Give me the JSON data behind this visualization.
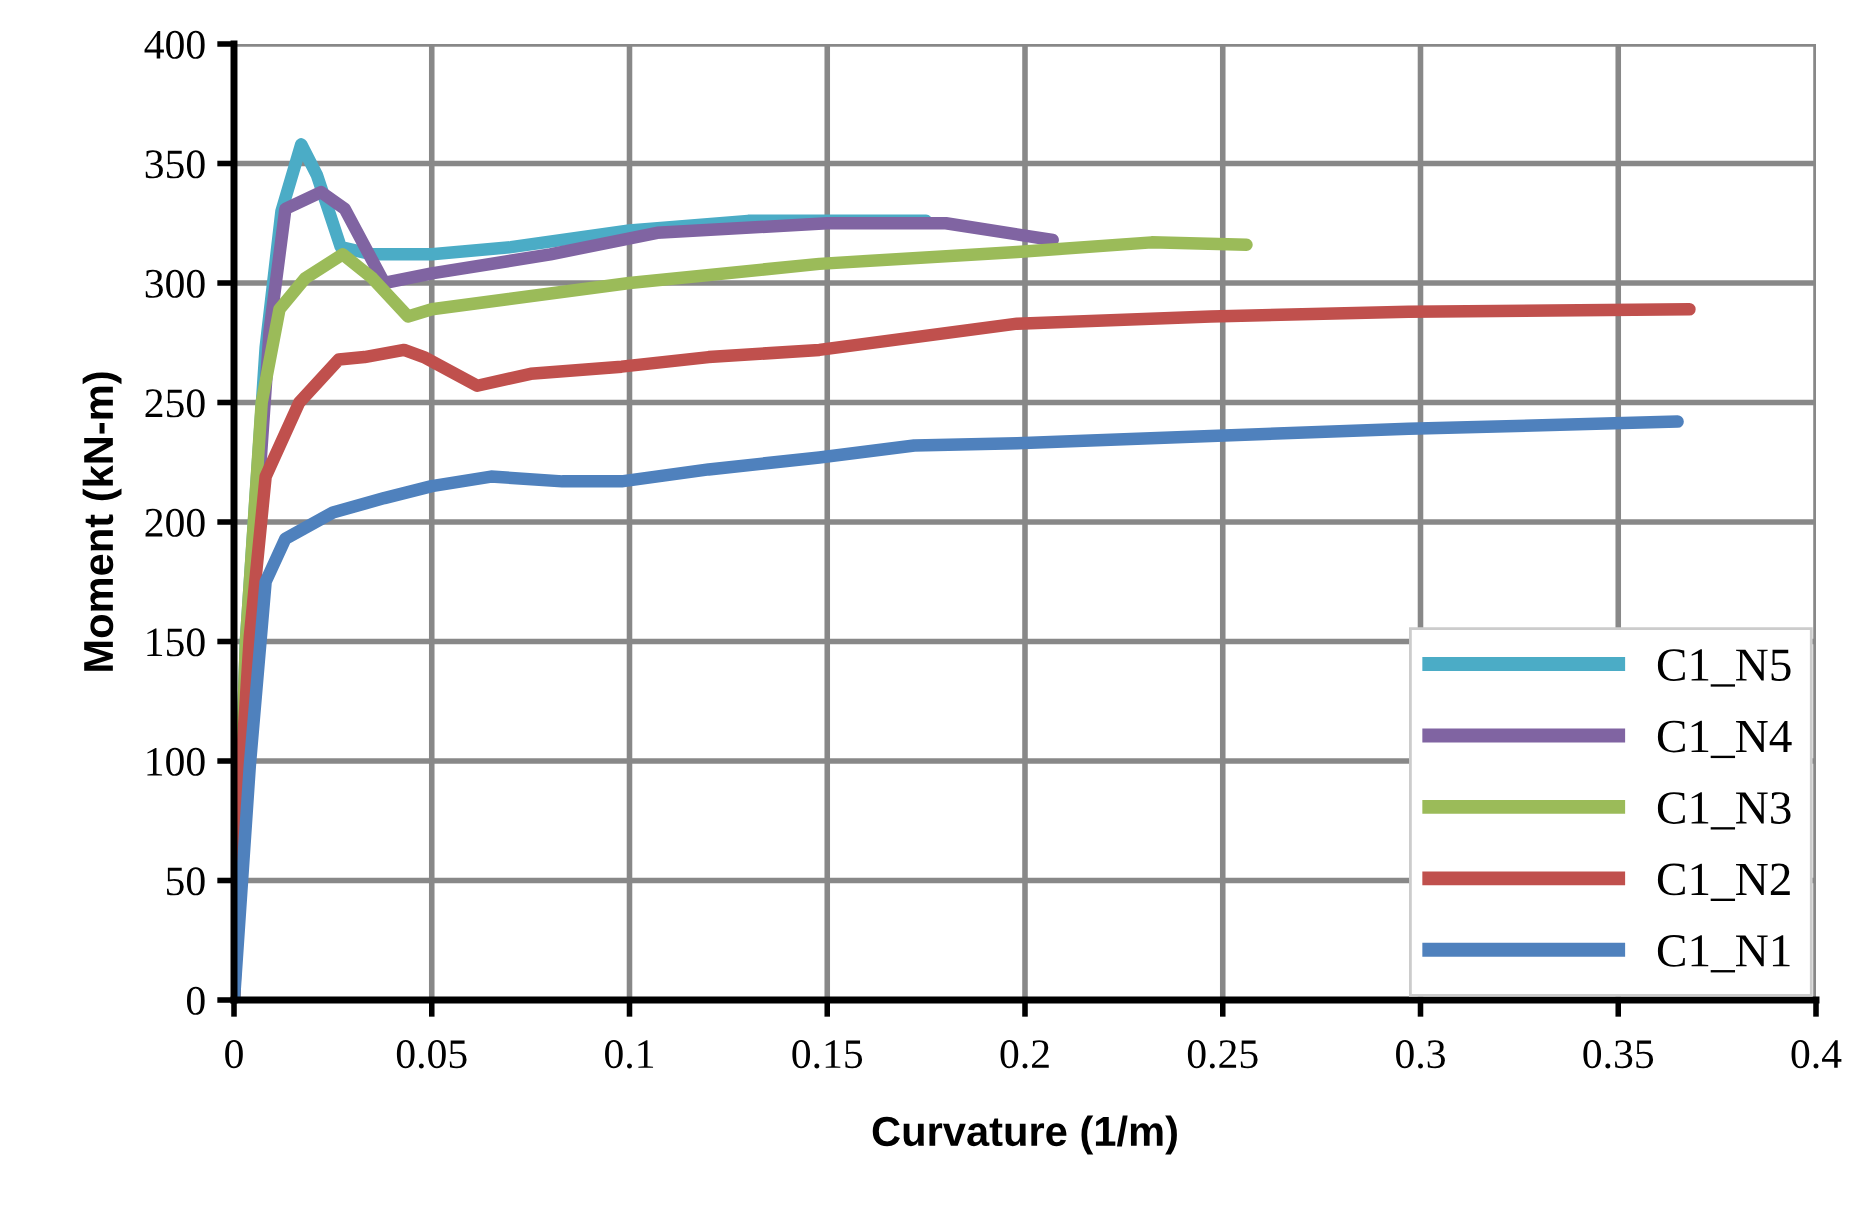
{
  "chart_data": {
    "type": "line",
    "xlabel": "Curvature (1/m)",
    "ylabel": "Moment (kN-m)",
    "xlim": [
      0,
      0.4
    ],
    "xticks": [
      0,
      0.05,
      0.1,
      0.15,
      0.2,
      0.25,
      0.3,
      0.35,
      0.4
    ],
    "ylim": [
      0,
      400
    ],
    "yticks": [
      0,
      50,
      100,
      150,
      200,
      250,
      300,
      350,
      400
    ],
    "grid": true,
    "legend": "bottom right",
    "marker": "none",
    "line_style": "solid",
    "series": [
      {
        "name": "C1_N5",
        "color": "#4bacc6",
        "x": [
          0,
          0.003,
          0.008,
          0.012,
          0.017,
          0.021,
          0.027,
          0.035,
          0.05,
          0.07,
          0.1,
          0.13,
          0.175
        ],
        "values": [
          0,
          150,
          273,
          330,
          358,
          345,
          315,
          312,
          312,
          315,
          322,
          326,
          326
        ]
      },
      {
        "name": "C1_N4",
        "color": "#8064a2",
        "x": [
          0,
          0.004,
          0.009,
          0.013,
          0.022,
          0.028,
          0.038,
          0.05,
          0.08,
          0.107,
          0.15,
          0.18,
          0.207
        ],
        "values": [
          0,
          160,
          280,
          331,
          338,
          331,
          300,
          304,
          312,
          321,
          325,
          325,
          318
        ]
      },
      {
        "name": "C1_N3",
        "color": "#9bbb59",
        "x": [
          0,
          0.003,
          0.007,
          0.0115,
          0.018,
          0.0275,
          0.035,
          0.044,
          0.05,
          0.1,
          0.148,
          0.198,
          0.232,
          0.256
        ],
        "values": [
          0,
          150,
          250,
          289,
          302,
          312,
          302,
          286,
          289,
          300,
          308,
          313,
          317,
          316
        ]
      },
      {
        "name": "C1_N2",
        "color": "#c0504d",
        "x": [
          0,
          0.002,
          0.004,
          0.008,
          0.0165,
          0.0265,
          0.033,
          0.043,
          0.048,
          0.0615,
          0.075,
          0.098,
          0.12,
          0.148,
          0.198,
          0.247,
          0.297,
          0.368
        ],
        "values": [
          0,
          100,
          152,
          219,
          250,
          268,
          269,
          272,
          269,
          257,
          262,
          265,
          269,
          272,
          283,
          286,
          288,
          289
        ]
      },
      {
        "name": "C1_N1",
        "color": "#4f81bd",
        "x": [
          0,
          0.004,
          0.008,
          0.013,
          0.025,
          0.038,
          0.05,
          0.065,
          0.083,
          0.098,
          0.12,
          0.148,
          0.172,
          0.198,
          0.247,
          0.297,
          0.365
        ],
        "values": [
          0,
          98,
          175,
          193,
          204,
          210,
          215,
          219,
          217,
          217,
          222,
          227,
          232,
          233,
          236,
          239,
          242
        ]
      }
    ]
  }
}
